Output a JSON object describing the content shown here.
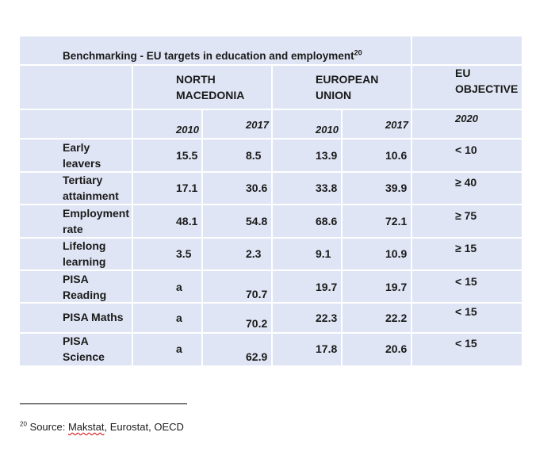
{
  "title": "Benchmarking - EU targets in education and employment",
  "title_sup": "20",
  "headers": {
    "nm": [
      "NORTH",
      "MACEDONIA"
    ],
    "eu": [
      "EUROPEAN",
      "UNION"
    ],
    "obj": [
      "EU",
      "OBJECTIVE"
    ],
    "nm_2010": "2010",
    "nm_2017": "2017",
    "eu_2010": "2010",
    "eu_2017": "2017",
    "obj_year": "2020"
  },
  "rows": [
    {
      "label": [
        "Early",
        "leavers"
      ],
      "nm2010": "15.5",
      "nm2017": "8.5",
      "eu2010": "13.9",
      "eu2017": "10.6",
      "target": "< 10"
    },
    {
      "label": [
        "Tertiary",
        "attainment"
      ],
      "nm2010": "17.1",
      "nm2017": "30.6",
      "eu2010": "33.8",
      "eu2017": "39.9",
      "target": "≥ 40"
    },
    {
      "label": [
        "Employment",
        "rate"
      ],
      "nm2010": "48.1",
      "nm2017": "54.8",
      "eu2010": "68.6",
      "eu2017": "72.1",
      "target": "≥ 75"
    },
    {
      "label": [
        "Lifelong",
        "learning"
      ],
      "nm2010": "3.5",
      "nm2017": "2.3",
      "eu2010": "9.1",
      "eu2017": "10.9",
      "target": "≥ 15"
    },
    {
      "label": [
        "PISA",
        "Reading"
      ],
      "nm2010": "a",
      "nm2017": "70.7",
      "eu2010": "19.7",
      "eu2017": "19.7",
      "target": "< 15"
    },
    {
      "label": [
        "PISA Maths",
        ""
      ],
      "nm2010": "a",
      "nm2017": "70.2",
      "eu2010": "22.3",
      "eu2017": "22.2",
      "target": "< 15"
    },
    {
      "label": [
        "PISA",
        "Science"
      ],
      "nm2010": "a",
      "nm2017": "62.9",
      "eu2010": "17.8",
      "eu2017": "20.6",
      "target": "< 15"
    }
  ],
  "footnote": {
    "sup": "20",
    "prefix": "Source: ",
    "source1": "Makstat",
    "rest": ", Eurostat, OECD"
  }
}
